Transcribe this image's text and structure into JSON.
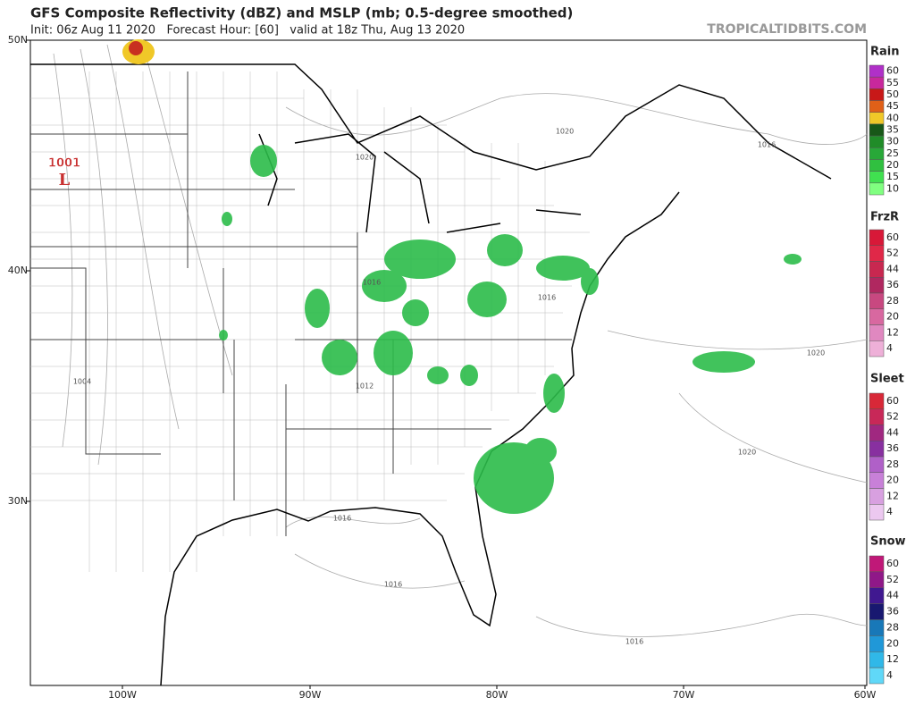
{
  "header": {
    "title": "GFS Composite Reflectivity (dBZ) and MSLP (mb; 0.5-degree smoothed)",
    "subtitle": "Init: 06z Aug 11 2020   Forecast Hour: [60]   valid at 18z Thu, Aug 13 2020",
    "source": "TROPICALTIDBITS.COM"
  },
  "map": {
    "lat_labels": [
      "50N",
      "40N",
      "30N"
    ],
    "lon_labels": [
      "100W",
      "90W",
      "80W",
      "70W",
      "60W"
    ],
    "low": {
      "pressure": "1001",
      "symbol": "L"
    },
    "isobar_labels": [
      "1020",
      "1016",
      "1020",
      "1016",
      "1016",
      "1012",
      "1004",
      "1016",
      "1016",
      "1016",
      "1020",
      "1020"
    ]
  },
  "legend": [
    {
      "title": "Rain",
      "levels": [
        "60",
        "55",
        "50",
        "45",
        "40",
        "35",
        "30",
        "25",
        "20",
        "15",
        "10"
      ],
      "colors": [
        "#b030c8",
        "#c8289c",
        "#c81818",
        "#e06018",
        "#f0c828",
        "#185818",
        "#208c28",
        "#28a838",
        "#30c040",
        "#40e050",
        "#80ff80"
      ]
    },
    {
      "title": "FrzR",
      "levels": [
        "60",
        "52",
        "44",
        "36",
        "28",
        "20",
        "12",
        "4"
      ],
      "colors": [
        "#d81838",
        "#e02848",
        "#c82850",
        "#b02860",
        "#c84880",
        "#d868a0",
        "#e088c0",
        "#eeb0d8"
      ]
    },
    {
      "title": "Sleet",
      "levels": [
        "60",
        "52",
        "44",
        "36",
        "28",
        "20",
        "12",
        "4"
      ],
      "colors": [
        "#d82838",
        "#c82858",
        "#a02880",
        "#8830a0",
        "#b060c8",
        "#c880d8",
        "#d8a0e0",
        "#ecc8f0"
      ]
    },
    {
      "title": "Snow",
      "levels": [
        "60",
        "52",
        "44",
        "36",
        "28",
        "20",
        "12",
        "4"
      ],
      "colors": [
        "#c01878",
        "#901888",
        "#401890",
        "#181870",
        "#1878b8",
        "#2098d8",
        "#30b8e8",
        "#60d8f8"
      ]
    }
  ]
}
